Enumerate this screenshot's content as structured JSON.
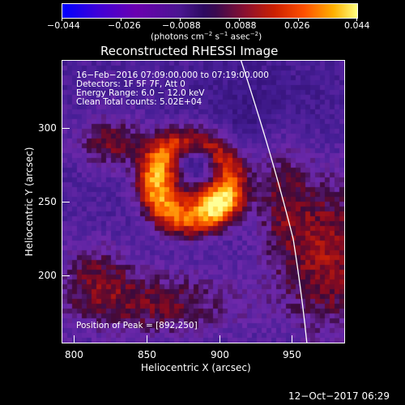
{
  "colorbar": {
    "tick_labels": [
      "−0.044",
      "−0.026",
      "−0.0088",
      "0.0088",
      "0.026",
      "0.044"
    ],
    "units_label": "(photons cm",
    "units_exp1": "−2",
    "units_mid": " s",
    "units_exp2": "−1",
    "units_end": " asec",
    "units_exp3": "−2",
    "units_close": ")",
    "range": [
      -0.044,
      0.044
    ]
  },
  "plot": {
    "title": "Reconstructed RHESSI Image",
    "info_lines": [
      "16−Feb−2016 07:09:00.000 to 07:19:00.000",
      "Detectors: 1F 5F 7F, Att 0",
      "Energy Range: 6.0 − 12.0 keV",
      "Clean     Total counts: 5.02E+04"
    ],
    "peak_label": "Position of Peak = [892,250]",
    "xlabel": "Heliocentric X (arcsec)",
    "ylabel": "Heliocentric Y (arcsec)",
    "x_ticks": [
      "800",
      "850",
      "900",
      "950"
    ],
    "y_ticks": [
      "200",
      "250",
      "300"
    ],
    "x_range": [
      792,
      985
    ],
    "y_range": [
      155,
      345
    ],
    "limb_color": "#ffffff"
  },
  "footer": {
    "timestamp": "12−Oct−2017 06:29"
  }
}
